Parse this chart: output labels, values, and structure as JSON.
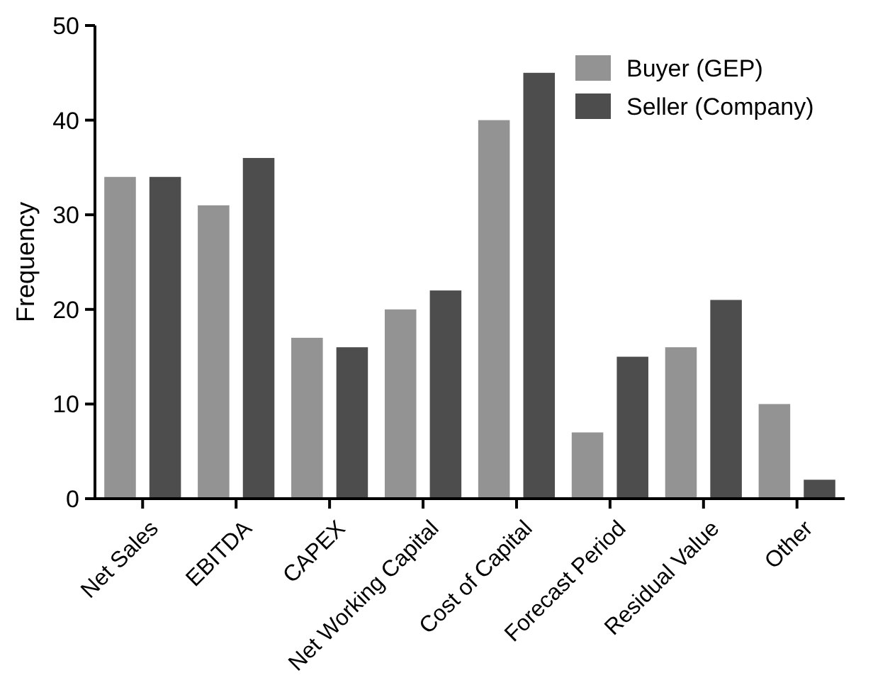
{
  "chart_data": {
    "type": "bar",
    "ylabel": "Frequency",
    "categories": [
      "Net Sales",
      "EBITDA",
      "CAPEX",
      "Net Working Capital",
      "Cost of Capital",
      "Forecast Period",
      "Residual Value",
      "Other"
    ],
    "series": [
      {
        "name": "Buyer (GEP)",
        "color": "#939393",
        "values": [
          34,
          31,
          17,
          20,
          40,
          7,
          16,
          10
        ]
      },
      {
        "name": "Seller (Company)",
        "color": "#4d4d4d",
        "values": [
          34,
          36,
          16,
          22,
          45,
          15,
          21,
          2
        ]
      }
    ],
    "ylim": [
      0,
      50
    ],
    "yticks": [
      0,
      10,
      20,
      30,
      40,
      50
    ],
    "grid": false,
    "legend": "top right"
  }
}
